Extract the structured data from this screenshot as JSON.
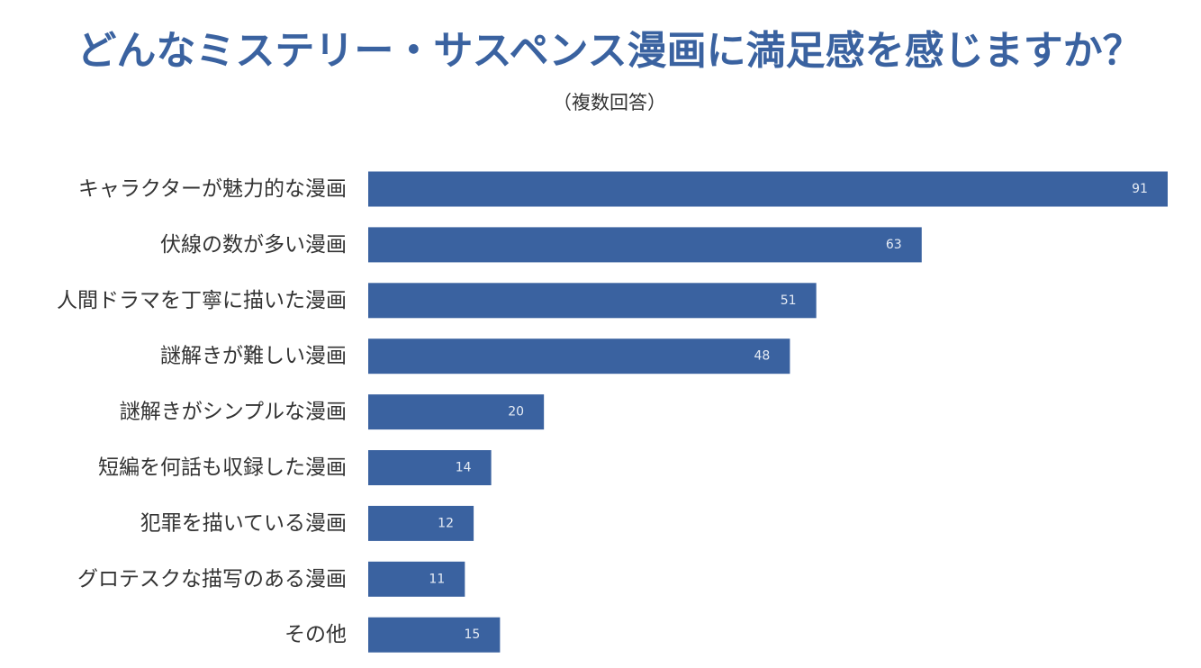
{
  "title": "どんなミステリー・サスペンス漫画に満足感を感じますか？",
  "subtitle": "（複数回答）",
  "colors": {
    "title": "#3a62a0",
    "bar": "#3a62a0",
    "bar_label": "#e6ecf5",
    "category_label": "#333333"
  },
  "chart_data": {
    "type": "bar",
    "orientation": "horizontal",
    "title": "どんなミステリー・サスペンス漫画に満足感を感じますか？",
    "subtitle": "（複数回答）",
    "categories": [
      "キャラクターが魅力的な漫画",
      "伏線の数が多い漫画",
      "人間ドラマを丁寧に描いた漫画",
      "謎解きが難しい漫画",
      "謎解きがシンプルな漫画",
      "短編を何話も収録した漫画",
      "犯罪を描いている漫画",
      "グロテスクな描写のある漫画",
      "その他"
    ],
    "values": [
      91,
      63,
      51,
      48,
      20,
      14,
      12,
      11,
      15
    ],
    "xlim": [
      0,
      91
    ],
    "grid": false,
    "legend": "none",
    "data_labels": "inside-end"
  }
}
